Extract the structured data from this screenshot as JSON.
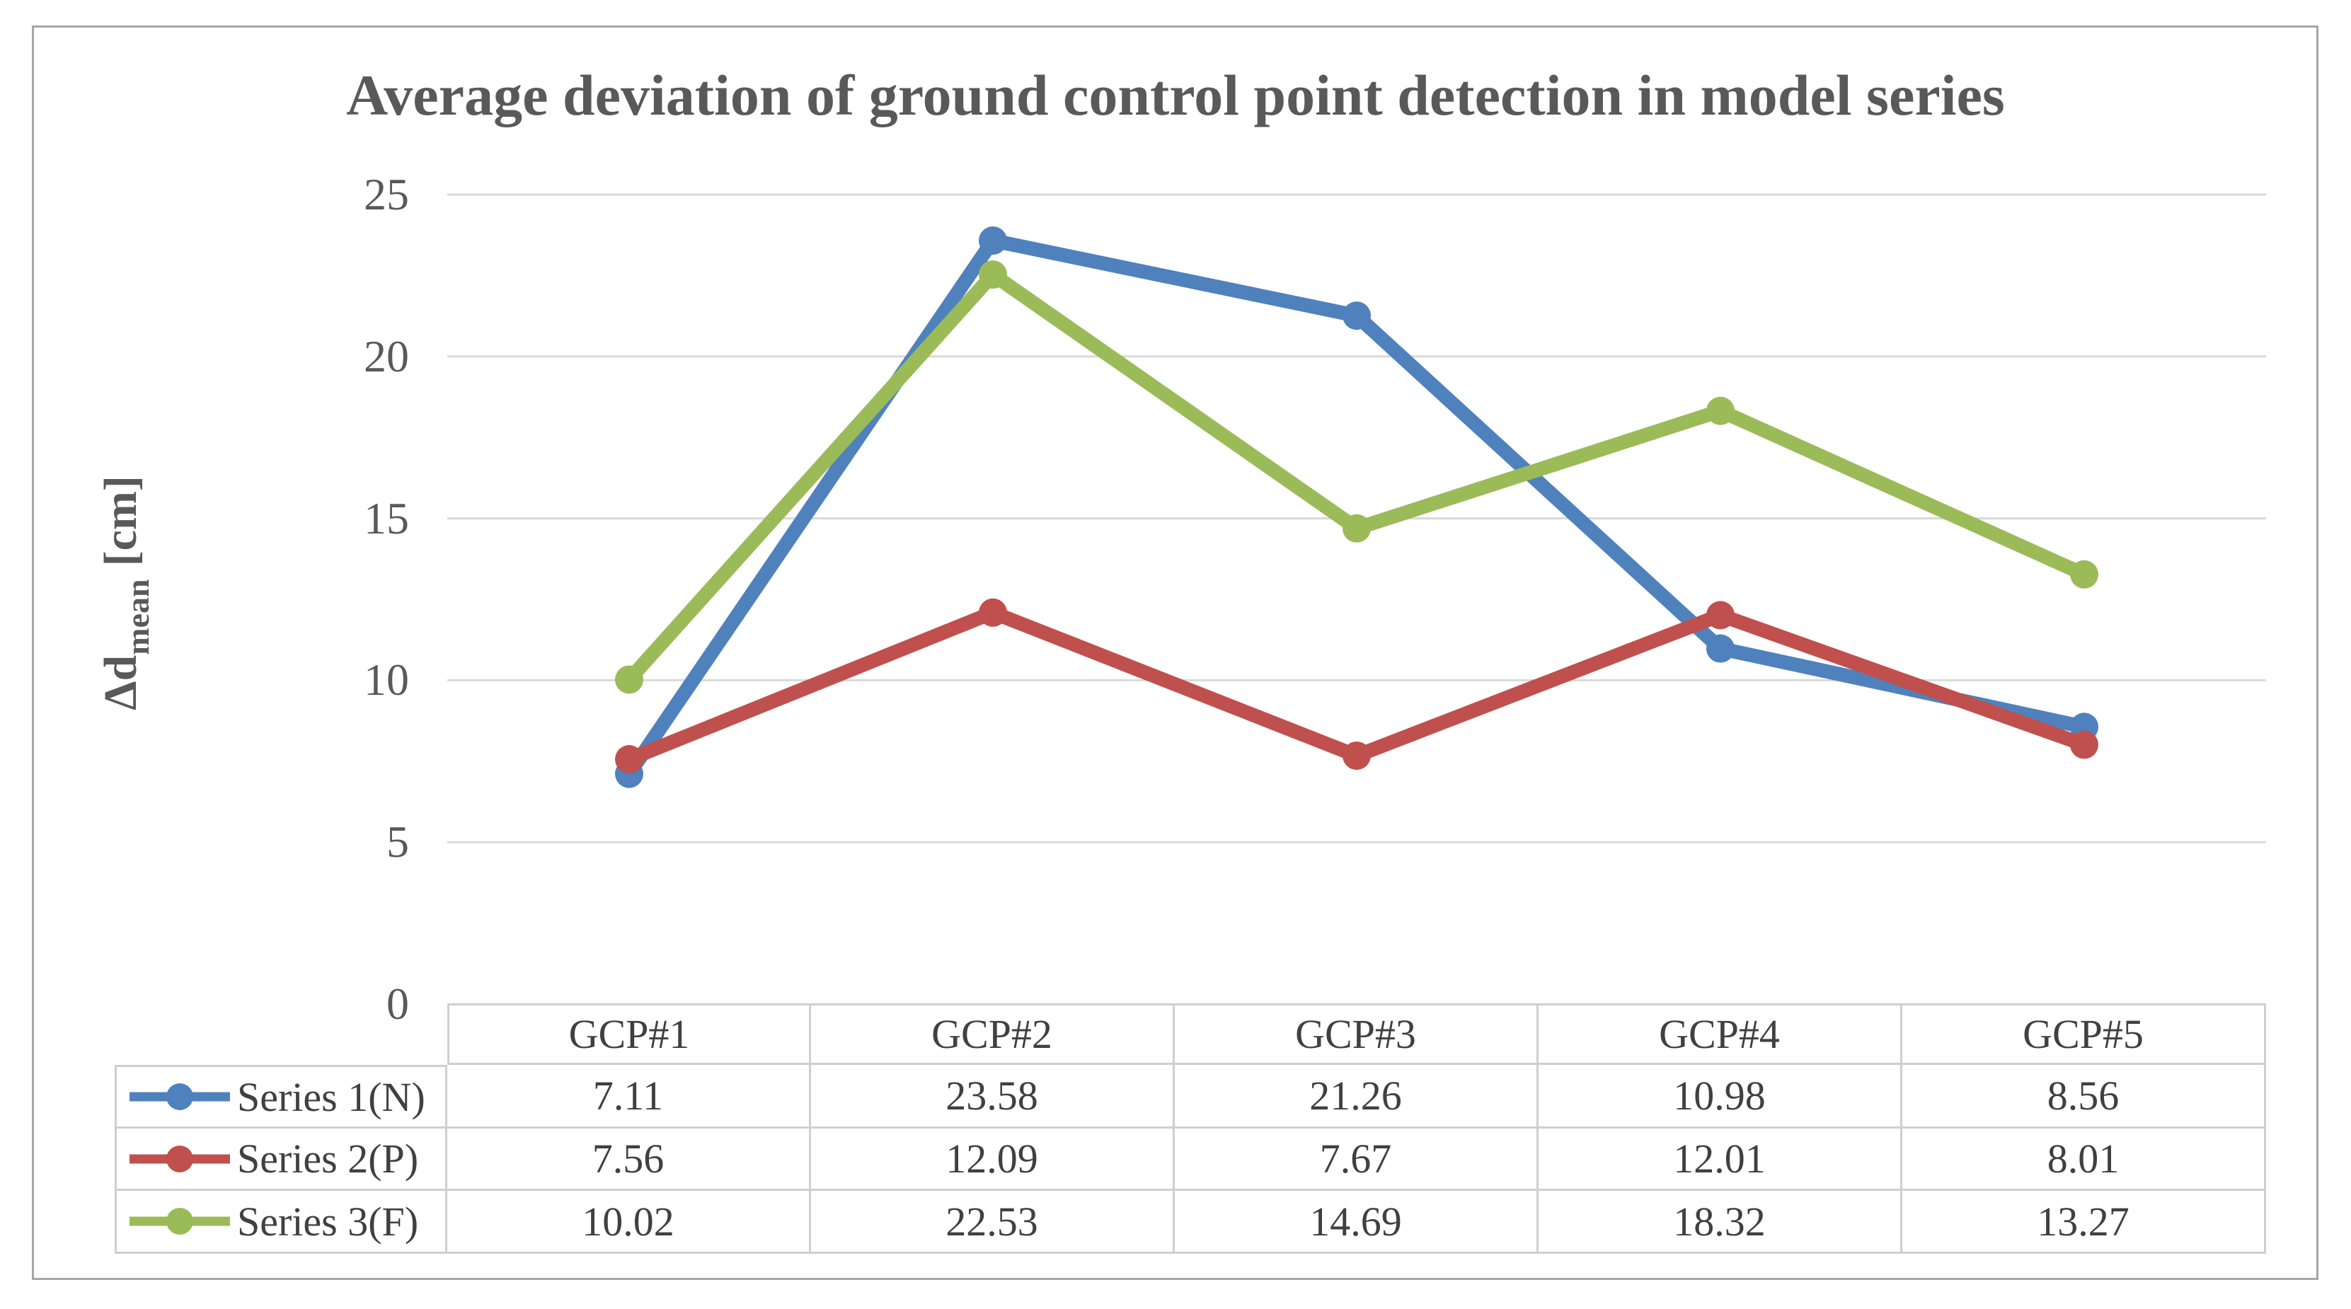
{
  "chart_data": {
    "type": "line",
    "title": "Average deviation of ground control point detection in model series",
    "categories": [
      "GCP#1",
      "GCP#2",
      "GCP#3",
      "GCP#4",
      "GCP#5"
    ],
    "series": [
      {
        "name": "Series 1(N)",
        "color": "#4F81BD",
        "values": [
          7.11,
          23.58,
          21.26,
          10.98,
          8.56
        ]
      },
      {
        "name": "Series 2(P)",
        "color": "#C0504D",
        "values": [
          7.56,
          12.09,
          7.67,
          12.01,
          8.01
        ]
      },
      {
        "name": "Series 3(F)",
        "color": "#9BBB59",
        "values": [
          10.02,
          22.53,
          14.69,
          18.32,
          13.27
        ]
      }
    ],
    "ylabel": "Δd_mean [cm]",
    "ylim": [
      0,
      25
    ],
    "y_ticks": [
      0,
      5,
      10,
      15,
      20,
      25
    ],
    "grid": "horizontal",
    "legend_position": "data-table-left",
    "marker": "circle"
  },
  "y_axis": {
    "label_main": "Δd",
    "label_sub": "mean",
    "label_unit": "[cm]"
  },
  "colors": {
    "grid_line": "#d9d9d9",
    "axis_text": "#595959",
    "title_text": "#595959",
    "table_text": "#404040",
    "table_border": "#cfcfcf",
    "frame_border": "#a6a6a6",
    "background": "#ffffff"
  },
  "value_format": "0.00"
}
